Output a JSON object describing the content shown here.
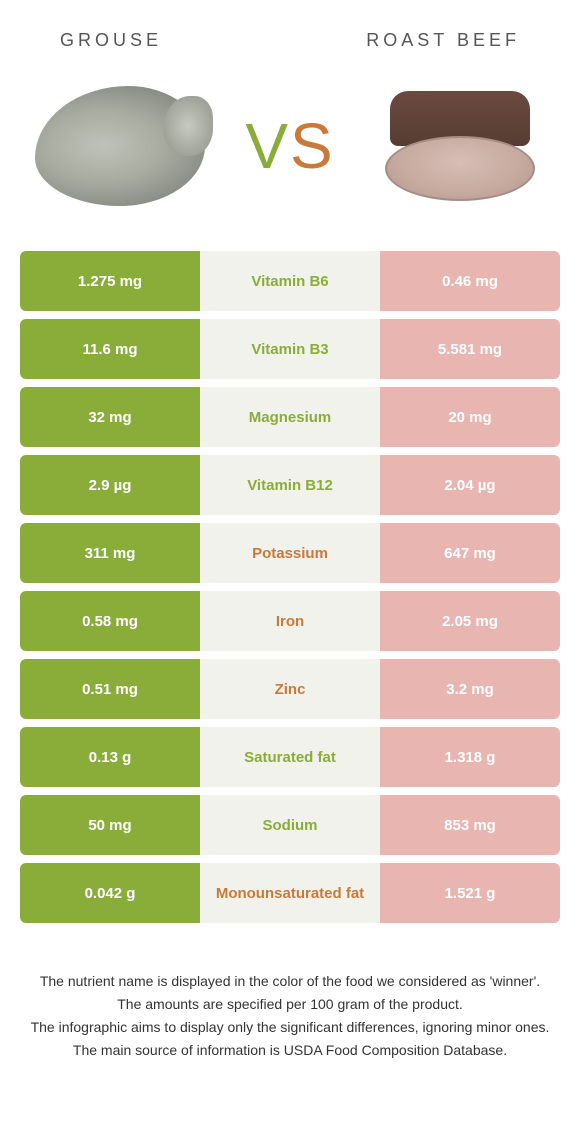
{
  "header": {
    "left_title": "GROUSE",
    "right_title": "ROAST BEEF"
  },
  "vs": {
    "v": "V",
    "s": "S"
  },
  "colors": {
    "left_bg": "#8aad3a",
    "right_bg": "#e9b5b0",
    "right_text": "#ffffff",
    "mid_bg": "#f2f2ed",
    "nutrient_left_win": "#8aad3a",
    "nutrient_right_win": "#c97a3a"
  },
  "rows": [
    {
      "left": "1.275 mg",
      "nutrient": "Vitamin B6",
      "right": "0.46 mg",
      "winner": "left"
    },
    {
      "left": "11.6 mg",
      "nutrient": "Vitamin B3",
      "right": "5.581 mg",
      "winner": "left"
    },
    {
      "left": "32 mg",
      "nutrient": "Magnesium",
      "right": "20 mg",
      "winner": "left"
    },
    {
      "left": "2.9 µg",
      "nutrient": "Vitamin B12",
      "right": "2.04 µg",
      "winner": "left"
    },
    {
      "left": "311 mg",
      "nutrient": "Potassium",
      "right": "647 mg",
      "winner": "right"
    },
    {
      "left": "0.58 mg",
      "nutrient": "Iron",
      "right": "2.05 mg",
      "winner": "right"
    },
    {
      "left": "0.51 mg",
      "nutrient": "Zinc",
      "right": "3.2 mg",
      "winner": "right"
    },
    {
      "left": "0.13 g",
      "nutrient": "Saturated fat",
      "right": "1.318 g",
      "winner": "left"
    },
    {
      "left": "50 mg",
      "nutrient": "Sodium",
      "right": "853 mg",
      "winner": "left"
    },
    {
      "left": "0.042 g",
      "nutrient": "Monounsaturated fat",
      "right": "1.521 g",
      "winner": "right"
    }
  ],
  "footnotes": [
    "The nutrient name is displayed in the color of the food we considered as 'winner'.",
    "The amounts are specified per 100 gram of the product.",
    "The infographic aims to display only the significant differences, ignoring minor ones.",
    "The main source of information is USDA Food Composition Database."
  ]
}
